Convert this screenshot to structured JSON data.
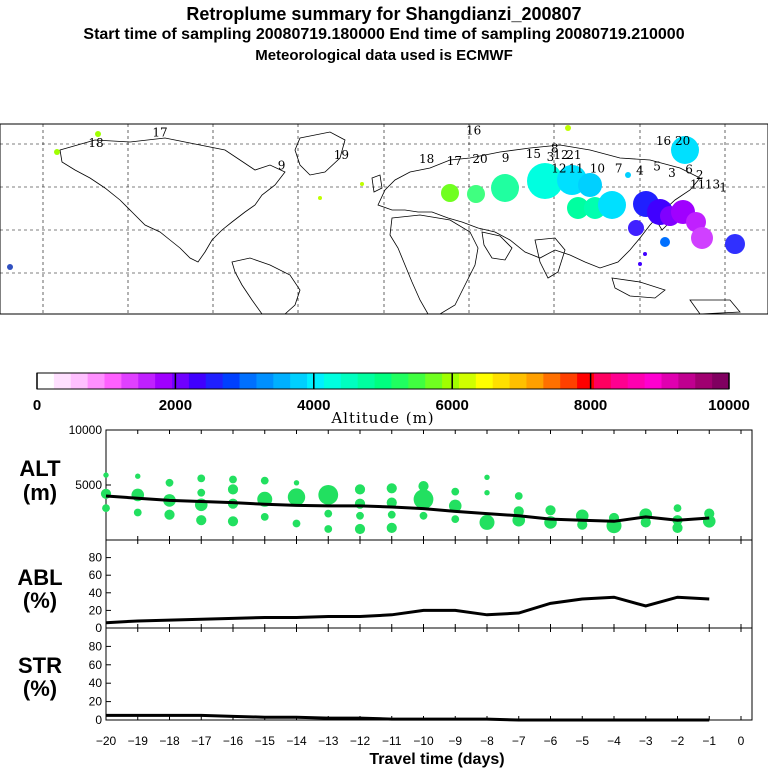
{
  "header": {
    "title": "Retroplume summary for Shangdianzi_200807",
    "sampling": "Start time of sampling 20080719.180000     End time of sampling 20080719.210000",
    "met": "Meteorological data used is ECMWF"
  },
  "colorbar": {
    "label": "Altitude (m)",
    "ticks": [
      "0",
      "2000",
      "4000",
      "6000",
      "8000",
      "10000"
    ],
    "colors": [
      "#ffffff",
      "#ffe0ff",
      "#ffc0ff",
      "#ff90ff",
      "#ff60ff",
      "#e040ff",
      "#c020ff",
      "#a000ff",
      "#7000ff",
      "#4000ff",
      "#2020ff",
      "#0040ff",
      "#0070ff",
      "#0090ff",
      "#00b0ff",
      "#00d0ff",
      "#00f0ff",
      "#00ffe0",
      "#00ffc0",
      "#00ffa0",
      "#00ff80",
      "#20ff60",
      "#40ff40",
      "#70ff20",
      "#a0ff00",
      "#d0ff00",
      "#ffff00",
      "#ffe000",
      "#ffc000",
      "#ffa000",
      "#ff7000",
      "#ff4000",
      "#ff0000",
      "#ff0060",
      "#ff0090",
      "#ff00b0",
      "#ff00d0",
      "#e000b0",
      "#c00090",
      "#a00070",
      "#800060"
    ]
  },
  "map_labels": [
    {
      "text": "17",
      "lon": -105,
      "lat": 78,
      "color": "#a0ff00"
    },
    {
      "text": "18",
      "lon": -135,
      "lat": 68,
      "color": "#a0ff00"
    },
    {
      "text": "16",
      "lon": 42,
      "lat": 80,
      "color": "#c0ff00"
    },
    {
      "text": "19",
      "lon": -20,
      "lat": 57,
      "color": "#c0ff00"
    },
    {
      "text": "9",
      "lon": -48,
      "lat": 47,
      "color": "#c0ff00"
    },
    {
      "text": "18",
      "lon": 20,
      "lat": 53,
      "color": "#70ff20"
    },
    {
      "text": "17",
      "lon": 33,
      "lat": 51,
      "color": "#40ff80"
    },
    {
      "text": "20",
      "lon": 45,
      "lat": 53,
      "color": "#20ffa0"
    },
    {
      "text": "9",
      "lon": 57,
      "lat": 54,
      "color": "#00ffc0"
    },
    {
      "text": "15",
      "lon": 70,
      "lat": 58,
      "color": "#00ffe0"
    },
    {
      "text": "8",
      "lon": 80,
      "lat": 63,
      "color": "#00e0ff"
    },
    {
      "text": "3",
      "lon": 78,
      "lat": 55,
      "color": "#00d0ff"
    },
    {
      "text": "12",
      "lon": 83,
      "lat": 57,
      "color": "#00d0ff"
    },
    {
      "text": "21",
      "lon": 89,
      "lat": 57,
      "color": "#00c0ff"
    },
    {
      "text": "12",
      "lon": 82,
      "lat": 44,
      "color": "#00ffa0"
    },
    {
      "text": "11",
      "lon": 90,
      "lat": 44,
      "color": "#00ffb0"
    },
    {
      "text": "10",
      "lon": 100,
      "lat": 44,
      "color": "#00e0ff"
    },
    {
      "text": "7",
      "lon": 110,
      "lat": 44,
      "color": "#00d0ff"
    },
    {
      "text": "16",
      "lon": 131,
      "lat": 70,
      "color": "#00e0ff"
    },
    {
      "text": "20",
      "lon": 140,
      "lat": 70,
      "color": "#00e0ff"
    },
    {
      "text": "4",
      "lon": 120,
      "lat": 42,
      "color": "#2020ff"
    },
    {
      "text": "5",
      "lon": 128,
      "lat": 46,
      "color": "#4000ff"
    },
    {
      "text": "3",
      "lon": 135,
      "lat": 40,
      "color": "#8000ff"
    },
    {
      "text": "6",
      "lon": 143,
      "lat": 43,
      "color": "#a000ff"
    },
    {
      "text": "2",
      "lon": 148,
      "lat": 38,
      "color": "#c020ff"
    },
    {
      "text": "11",
      "lon": 147,
      "lat": 29,
      "color": "#d040ff"
    },
    {
      "text": "1",
      "lon": 159,
      "lat": 26,
      "color": "#3030ff"
    },
    {
      "text": "13",
      "lon": 154,
      "lat": 29,
      "color": "#c030ff"
    }
  ],
  "chart_data": [
    {
      "type": "scatter",
      "name": "ALT",
      "label_line1": "ALT",
      "label_line2": "(m)",
      "ylim": [
        0,
        10000
      ],
      "yticks": [
        "10000",
        "5000"
      ],
      "mean_line": {
        "x": [
          -20,
          -19,
          -18,
          -17,
          -16,
          -15,
          -14,
          -13,
          -12,
          -11,
          -10,
          -9,
          -8,
          -7,
          -6,
          -5,
          -4,
          -3,
          -2,
          -1
        ],
        "y": [
          4000,
          3800,
          3600,
          3500,
          3400,
          3250,
          3150,
          3100,
          3100,
          3000,
          2850,
          2600,
          2400,
          2200,
          1900,
          1800,
          1700,
          2100,
          1800,
          2000
        ]
      },
      "points": [
        {
          "x": -20,
          "y": 5900,
          "s": 1
        },
        {
          "x": -20,
          "y": 4200,
          "s": 3
        },
        {
          "x": -20,
          "y": 2900,
          "s": 2
        },
        {
          "x": -19,
          "y": 5800,
          "s": 1
        },
        {
          "x": -19,
          "y": 4100,
          "s": 4
        },
        {
          "x": -19,
          "y": 2500,
          "s": 2
        },
        {
          "x": -18,
          "y": 5200,
          "s": 2
        },
        {
          "x": -18,
          "y": 3600,
          "s": 4
        },
        {
          "x": -18,
          "y": 2300,
          "s": 3
        },
        {
          "x": -17,
          "y": 5600,
          "s": 2
        },
        {
          "x": -17,
          "y": 4300,
          "s": 2
        },
        {
          "x": -17,
          "y": 3200,
          "s": 4
        },
        {
          "x": -17,
          "y": 1800,
          "s": 3
        },
        {
          "x": -16,
          "y": 5500,
          "s": 2
        },
        {
          "x": -16,
          "y": 4600,
          "s": 3
        },
        {
          "x": -16,
          "y": 3300,
          "s": 3
        },
        {
          "x": -16,
          "y": 1700,
          "s": 3
        },
        {
          "x": -15,
          "y": 5400,
          "s": 2
        },
        {
          "x": -15,
          "y": 3700,
          "s": 5
        },
        {
          "x": -15,
          "y": 2100,
          "s": 2
        },
        {
          "x": -14,
          "y": 5200,
          "s": 1
        },
        {
          "x": -14,
          "y": 3900,
          "s": 6
        },
        {
          "x": -14,
          "y": 1500,
          "s": 2
        },
        {
          "x": -13,
          "y": 4100,
          "s": 7
        },
        {
          "x": -13,
          "y": 2400,
          "s": 2
        },
        {
          "x": -13,
          "y": 1000,
          "s": 2
        },
        {
          "x": -12,
          "y": 4600,
          "s": 3
        },
        {
          "x": -12,
          "y": 3300,
          "s": 3
        },
        {
          "x": -12,
          "y": 2200,
          "s": 2
        },
        {
          "x": -12,
          "y": 1000,
          "s": 3
        },
        {
          "x": -11,
          "y": 4700,
          "s": 3
        },
        {
          "x": -11,
          "y": 3400,
          "s": 3
        },
        {
          "x": -11,
          "y": 2300,
          "s": 2
        },
        {
          "x": -11,
          "y": 1100,
          "s": 3
        },
        {
          "x": -10,
          "y": 4900,
          "s": 3
        },
        {
          "x": -10,
          "y": 3700,
          "s": 7
        },
        {
          "x": -10,
          "y": 2200,
          "s": 2
        },
        {
          "x": -9,
          "y": 4400,
          "s": 2
        },
        {
          "x": -9,
          "y": 3100,
          "s": 4
        },
        {
          "x": -9,
          "y": 1900,
          "s": 2
        },
        {
          "x": -8,
          "y": 5700,
          "s": 1
        },
        {
          "x": -8,
          "y": 4300,
          "s": 1
        },
        {
          "x": -8,
          "y": 1600,
          "s": 5
        },
        {
          "x": -7,
          "y": 4000,
          "s": 2
        },
        {
          "x": -7,
          "y": 2600,
          "s": 3
        },
        {
          "x": -7,
          "y": 1800,
          "s": 4
        },
        {
          "x": -6,
          "y": 2700,
          "s": 3
        },
        {
          "x": -6,
          "y": 1600,
          "s": 4
        },
        {
          "x": -5,
          "y": 2200,
          "s": 4
        },
        {
          "x": -5,
          "y": 1400,
          "s": 3
        },
        {
          "x": -4,
          "y": 2000,
          "s": 3
        },
        {
          "x": -4,
          "y": 1300,
          "s": 5
        },
        {
          "x": -3,
          "y": 2300,
          "s": 4
        },
        {
          "x": -3,
          "y": 1600,
          "s": 3
        },
        {
          "x": -2,
          "y": 2900,
          "s": 2
        },
        {
          "x": -2,
          "y": 1800,
          "s": 3
        },
        {
          "x": -2,
          "y": 1100,
          "s": 3
        },
        {
          "x": -1,
          "y": 2400,
          "s": 3
        },
        {
          "x": -1,
          "y": 1700,
          "s": 4
        }
      ]
    },
    {
      "type": "line",
      "name": "ABL",
      "label_line1": "ABL",
      "label_line2": "(%)",
      "ylim": [
        0,
        100
      ],
      "yticks": [
        "80",
        "60",
        "40",
        "20",
        "0"
      ],
      "x": [
        -20,
        -19,
        -18,
        -17,
        -16,
        -15,
        -14,
        -13,
        -12,
        -11,
        -10,
        -9,
        -8,
        -7,
        -6,
        -5,
        -4,
        -3,
        -2,
        -1
      ],
      "y": [
        6,
        8,
        9,
        10,
        11,
        12,
        12,
        13,
        13,
        15,
        20,
        20,
        15,
        17,
        28,
        33,
        35,
        25,
        35,
        33
      ]
    },
    {
      "type": "line",
      "name": "STR",
      "label_line1": "STR",
      "label_line2": "(%)",
      "ylim": [
        0,
        100
      ],
      "yticks": [
        "80",
        "60",
        "40",
        "20",
        "0"
      ],
      "x": [
        -20,
        -19,
        -18,
        -17,
        -16,
        -15,
        -14,
        -13,
        -12,
        -11,
        -10,
        -9,
        -8,
        -7,
        -6,
        -5,
        -4,
        -3,
        -2,
        -1
      ],
      "y": [
        5,
        5,
        5,
        5,
        4,
        3,
        3,
        2,
        2,
        1,
        1,
        1,
        1,
        0,
        0,
        0,
        0,
        0,
        0,
        0
      ]
    }
  ],
  "x_axis": {
    "ticks": [
      "-20",
      "-19",
      "-18",
      "-17",
      "-16",
      "-15",
      "-14",
      "-13",
      "-12",
      "-11",
      "-10",
      "-9",
      "-8",
      "-7",
      "-6",
      "-5",
      "-4",
      "-3",
      "-2",
      "-1",
      "0"
    ],
    "label": "Travel time (days)"
  }
}
